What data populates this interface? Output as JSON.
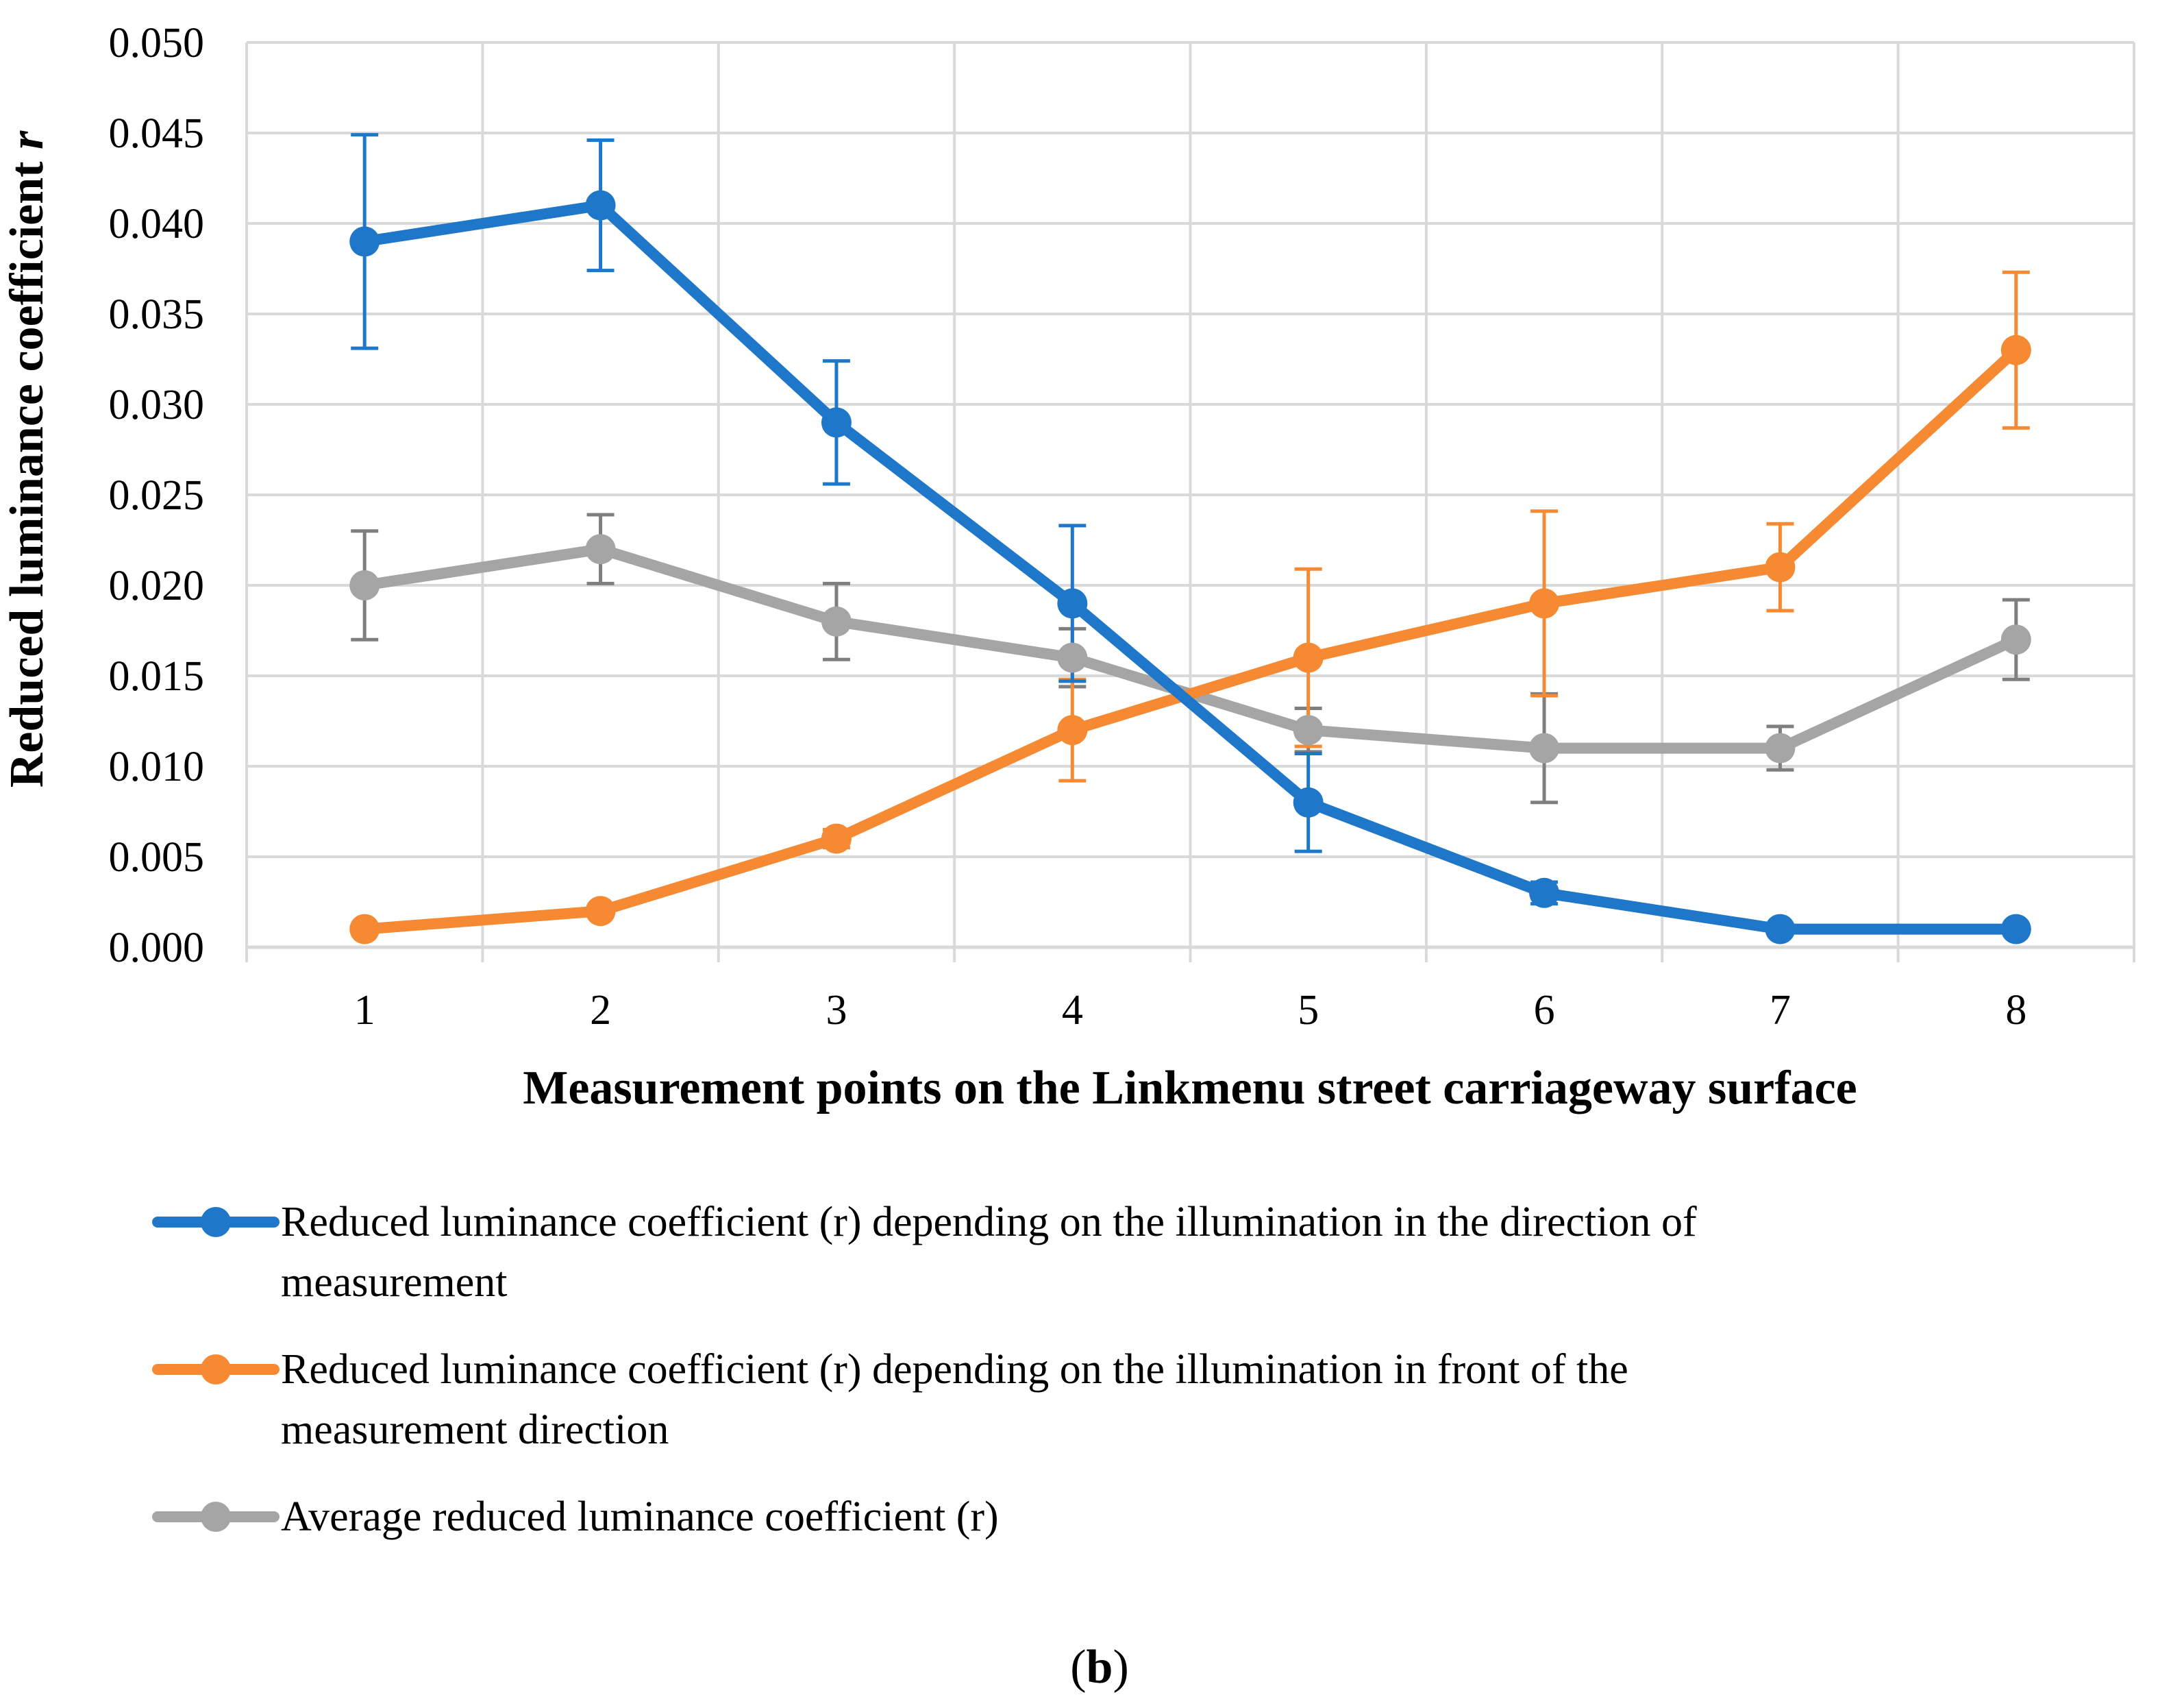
{
  "chart_data": {
    "type": "line",
    "title": "",
    "xlabel": "Measurement points on the Linkmenu street carriageway surface",
    "ylabel_main": "Reduced luminance coefficient ",
    "ylabel_var": "r",
    "categories": [
      "1",
      "2",
      "3",
      "4",
      "5",
      "6",
      "7",
      "8"
    ],
    "ylim": [
      0,
      0.05
    ],
    "yticks": [
      "0.000",
      "0.005",
      "0.010",
      "0.015",
      "0.020",
      "0.025",
      "0.030",
      "0.035",
      "0.040",
      "0.045",
      "0.050"
    ],
    "grid": true,
    "legend_position": "bottom",
    "series": [
      {
        "name": "Reduced luminance coefficient (r) depending on the illumination in the direction of measurement",
        "legend_lines": [
          "Reduced luminance coefficient (r) depending on the illumination in the direction of",
          "measurement"
        ],
        "color": "#1F77C9",
        "values": [
          0.039,
          0.041,
          0.029,
          0.019,
          0.008,
          0.003,
          0.001,
          0.001
        ],
        "errors": [
          0.0059,
          0.0036,
          0.0034,
          0.0043,
          0.0027,
          0.0006,
          0.0002,
          0.0002
        ]
      },
      {
        "name": "Reduced luminance coefficient (r) depending on the illumination in front of the measurement direction",
        "legend_lines": [
          "Reduced luminance coefficient (r) depending on the illumination in front of the",
          "measurement direction"
        ],
        "color": "#F58A32",
        "values": [
          0.001,
          0.002,
          0.006,
          0.012,
          0.016,
          0.019,
          0.021,
          0.033
        ],
        "errors": [
          0.0002,
          0.0002,
          0.0005,
          0.0028,
          0.0049,
          0.0051,
          0.0024,
          0.0043
        ]
      },
      {
        "name": "Average reduced luminance coefficient (r)",
        "legend_lines": [
          "Average reduced luminance coefficient (r)"
        ],
        "color": "#A5A5A5",
        "values": [
          0.02,
          0.022,
          0.018,
          0.016,
          0.012,
          0.011,
          0.011,
          0.017
        ],
        "errors": [
          0.003,
          0.0019,
          0.0021,
          0.0016,
          0.0012,
          0.003,
          0.0012,
          0.0022
        ]
      }
    ],
    "caption_open": "(",
    "caption_label": "b",
    "caption_close": ")"
  }
}
